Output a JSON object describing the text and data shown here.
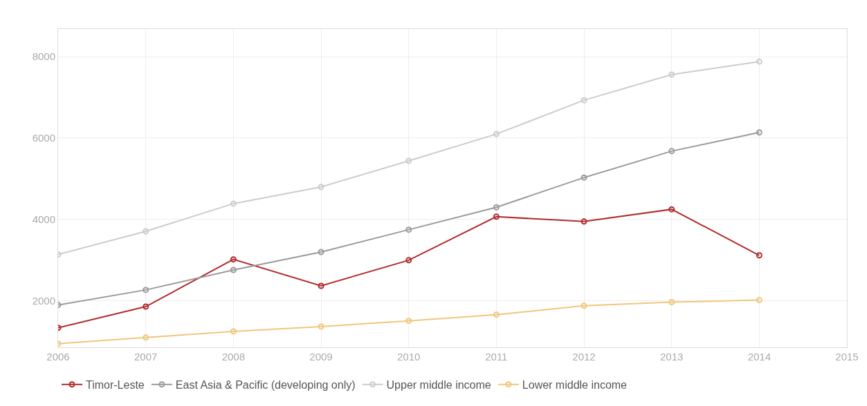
{
  "chart_data": {
    "type": "line",
    "x": [
      2006,
      2007,
      2008,
      2009,
      2010,
      2011,
      2012,
      2013,
      2014
    ],
    "series": [
      {
        "name": "Timor-Leste",
        "color": "#b22a2a",
        "values": [
          1340,
          1860,
          3020,
          2370,
          3000,
          4070,
          3950,
          4250,
          3120
        ]
      },
      {
        "name": "East Asia & Pacific (developing only)",
        "color": "#9a9a9a",
        "values": [
          1900,
          2270,
          2760,
          3200,
          3750,
          4300,
          5030,
          5680,
          6140
        ]
      },
      {
        "name": "Upper middle income",
        "color": "#cccccc",
        "values": [
          3140,
          3710,
          4390,
          4800,
          5440,
          6100,
          6930,
          7560,
          7880
        ]
      },
      {
        "name": "Lower middle income",
        "color": "#f0c67a",
        "values": [
          950,
          1100,
          1250,
          1370,
          1510,
          1660,
          1880,
          1970,
          2020
        ]
      }
    ],
    "xlim": [
      2006,
      2015
    ],
    "xticks": [
      2006,
      2007,
      2008,
      2009,
      2010,
      2011,
      2012,
      2013,
      2014,
      2015
    ],
    "ylim": [
      860,
      8680
    ],
    "yticks": [
      2000,
      4000,
      6000,
      8000
    ],
    "grid": true,
    "legend": "bottom left",
    "marker": "circle",
    "line_style": "solid"
  }
}
